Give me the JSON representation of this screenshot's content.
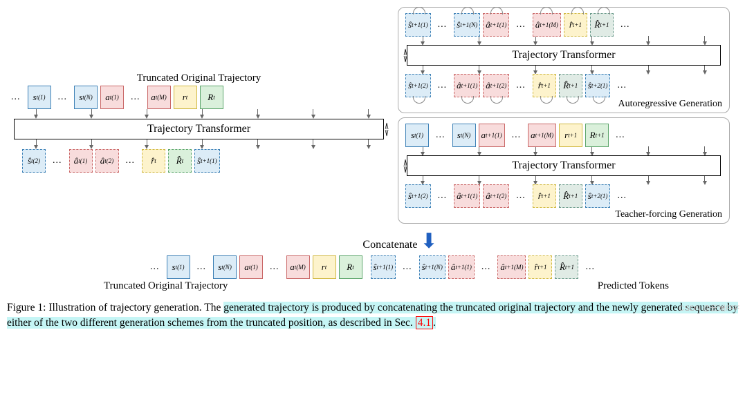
{
  "colors": {
    "state_fill": "#dcecf7",
    "state_border": "#3b7fb5",
    "action_fill": "#f8dcdc",
    "action_border": "#c96666",
    "reward_fill": "#fdf3cc",
    "reward_border": "#d0b840",
    "return_fill": "#daf0db",
    "return_border": "#5ba56a",
    "mix_fill": "#e0ebe5",
    "mix_border": "#6a9a8a"
  },
  "labels": {
    "truncated": "Truncated Original Trajectory",
    "transformer": "Trajectory Transformer",
    "autoreg": "Autoregressive Generation",
    "teacher": "Teacher-forcing Generation",
    "concat": "Concatenate",
    "predicted": "Predicted Tokens"
  },
  "tokens": {
    "s_t_1": "s<span class='sub'>t</span><span class='sup'>(1)</span>",
    "s_t_N": "s<span class='sub'>t</span><span class='sup'>(N)</span>",
    "a_t_1": "a<span class='sub'>t</span><span class='sup'>(1)</span>",
    "a_t_M": "a<span class='sub'>t</span><span class='sup'>(M)</span>",
    "r_t": "r<span class='sub'>t</span>",
    "R_t": "R<span class='sub'>t</span>",
    "sh_t_2": "ŝ<span class='sub'>t</span><span class='sup'>(2)</span>",
    "ah_t_1": "â<span class='sub'>t</span><span class='sup'>(1)</span>",
    "ah_t_2": "â<span class='sub'>t</span><span class='sup'>(2)</span>",
    "rh_t": "r̂<span class='sub'>t</span>",
    "Rh_t": "R̂<span class='sub'>t</span>",
    "sh_t1_1": "ŝ<span class='sub'>t+1</span><span class='sup'>(1)</span>",
    "sh_t1_2": "ŝ<span class='sub'>t+1</span><span class='sup'>(2)</span>",
    "sh_t1_N": "ŝ<span class='sub'>t+1</span><span class='sup'>(N)</span>",
    "ah_t1_1": "â<span class='sub'>t+1</span><span class='sup'>(1)</span>",
    "ah_t1_2": "â<span class='sub'>t+1</span><span class='sup'>(2)</span>",
    "ah_t1_M": "â<span class='sub'>t+1</span><span class='sup'>(M)</span>",
    "rh_t1": "r̂<span class='sub'>t+1</span>",
    "Rh_t1": "R̂<span class='sub'>t+1</span>",
    "sh_t2_1": "ŝ<span class='sub'>t+2</span><span class='sup'>(1)</span>",
    "a_t1_1": "a<span class='sub'>t+1</span><span class='sup'>(1)</span>",
    "a_t1_M": "a<span class='sub'>t+1</span><span class='sup'>(M)</span>",
    "r_t1": "r<span class='sub'>t+1</span>",
    "R_t1": "R<span class='sub'>t+1</span>"
  },
  "caption_parts": {
    "prefix": "Figure 1: Illustration of trajectory generation. The ",
    "hl1": "generated trajectory is produced by concatenating the truncated original trajectory and the newly generated sequence by either of the two different generation schemes from the truncated position, as described in Sec. ",
    "sec": "4.1",
    "period": "."
  },
  "watermark": "CSDN @云端FFF",
  "dots": "..."
}
